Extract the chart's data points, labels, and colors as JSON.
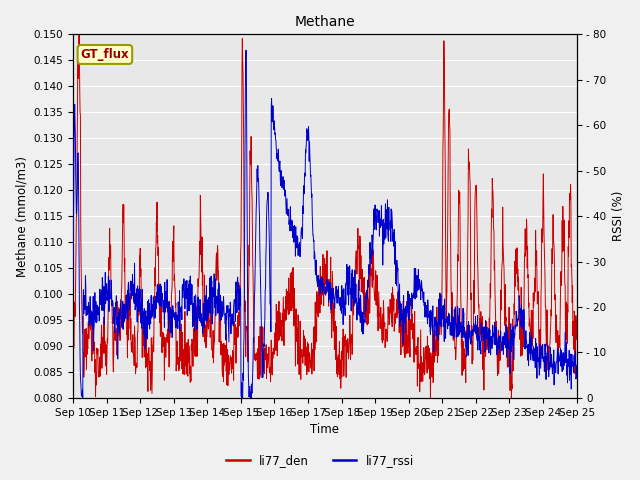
{
  "title": "Methane",
  "xlabel": "Time",
  "ylabel_left": "Methane (mmol/m3)",
  "ylabel_right": "RSSI (%)",
  "ylim_left": [
    0.08,
    0.15
  ],
  "ylim_right": [
    0,
    80
  ],
  "yticks_left": [
    0.08,
    0.085,
    0.09,
    0.095,
    0.1,
    0.105,
    0.11,
    0.115,
    0.12,
    0.125,
    0.13,
    0.135,
    0.14,
    0.145,
    0.15
  ],
  "yticks_right": [
    0,
    10,
    20,
    30,
    40,
    50,
    60,
    70,
    80
  ],
  "color_red": "#cc0000",
  "color_blue": "#0000cc",
  "legend_labels": [
    "li77_den",
    "li77_rssi"
  ],
  "box_label": "GT_flux",
  "box_facecolor": "#ffffcc",
  "box_edgecolor": "#999900",
  "plot_bg": "#e8e8e8",
  "fig_bg": "#f0f0f0",
  "grid_color": "#ffffff",
  "xtick_labels": [
    "Sep 10",
    "Sep 11",
    "Sep 12",
    "Sep 13",
    "Sep 14",
    "Sep 15",
    "Sep 16",
    "Sep 17",
    "Sep 18",
    "Sep 19",
    "Sep 20",
    "Sep 21",
    "Sep 22",
    "Sep 23",
    "Sep 24",
    "Sep 25"
  ]
}
